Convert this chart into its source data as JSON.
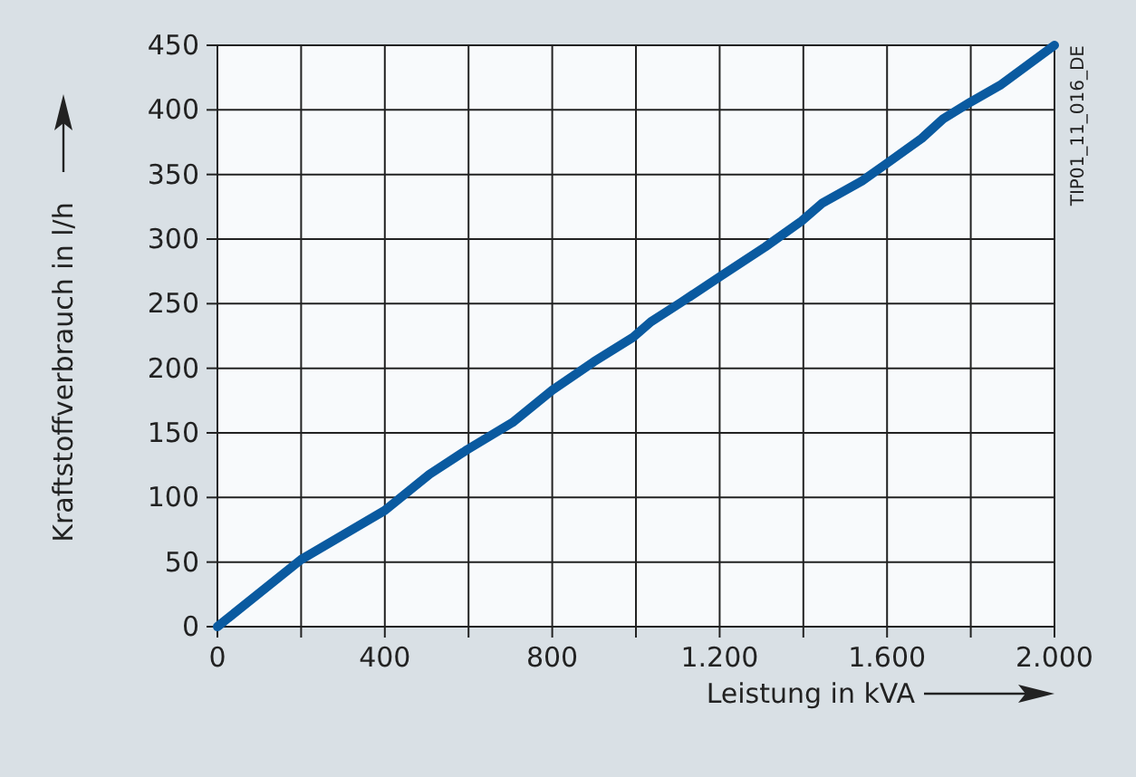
{
  "chart_data": {
    "type": "line",
    "xlabel": "Leistung in kVA",
    "ylabel": "Kraftstoffverbrauch in l/h",
    "annotations": [
      "TIP01_11_016_DE"
    ],
    "x": [
      0,
      200,
      400,
      507,
      597,
      705,
      800,
      899,
      993,
      1036,
      1108,
      1201,
      1309,
      1396,
      1446,
      1540,
      1597,
      1683,
      1734,
      1799,
      1870,
      2000
    ],
    "series": [
      {
        "color": "#0a5aa0",
        "values": [
          0,
          52,
          90,
          118,
          137,
          158,
          183,
          205,
          224,
          236,
          251,
          271,
          294,
          314,
          328,
          345,
          358,
          378,
          393,
          406,
          419,
          450
        ]
      }
    ],
    "xlim": [
      0,
      2000
    ],
    "xticks": [
      0,
      {
        "value": 200,
        "label": null
      },
      400,
      {
        "value": 600,
        "label": null
      },
      800,
      {
        "value": 1000,
        "label": null
      },
      {
        "value": 1200,
        "label": "1.200"
      },
      {
        "value": 1400,
        "label": null
      },
      {
        "value": 1600,
        "label": "1.600"
      },
      {
        "value": 1800,
        "label": null
      },
      {
        "value": 2000,
        "label": "2.000"
      }
    ],
    "ylim": [
      0,
      450
    ],
    "yticks": [
      0,
      50,
      100,
      150,
      200,
      250,
      300,
      350,
      400,
      450
    ],
    "grid": true,
    "marker": "none",
    "line_style": "solid"
  }
}
